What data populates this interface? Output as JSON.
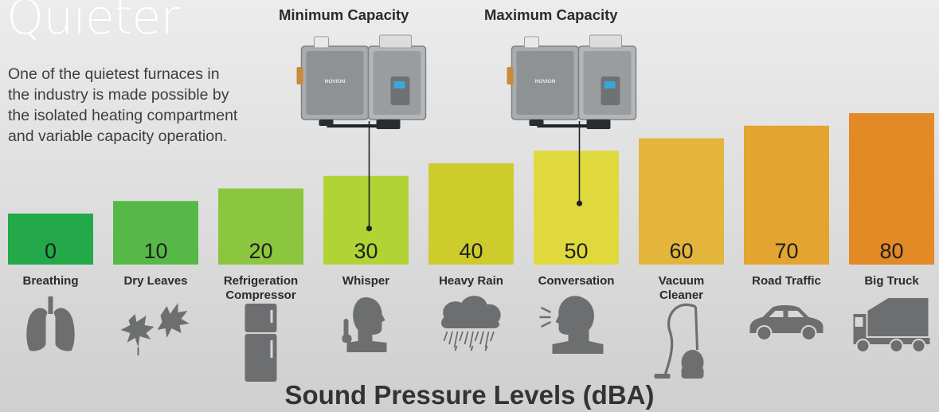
{
  "header": {
    "title": "Quieter",
    "intro": "One of the quietest furnaces in the industry is made possible by the isolated heating compartment and variable capacity operation."
  },
  "annotations": {
    "min_label": "Minimum Capacity",
    "max_label": "Maximum Capacity",
    "min_value": 30,
    "max_value": 50,
    "brand_text": "NOVION"
  },
  "chart_data": {
    "type": "bar",
    "title": "Sound Pressure Levels (dBA)",
    "categories": [
      "Breathing",
      "Dry Leaves",
      "Refrigeration Compressor",
      "Whisper",
      "Heavy Rain",
      "Conversation",
      "Vacuum Cleaner",
      "Road Traffic",
      "Big Truck"
    ],
    "category_lines": [
      [
        "Breathing"
      ],
      [
        "Dry Leaves"
      ],
      [
        "Refrigeration",
        "Compressor"
      ],
      [
        "Whisper"
      ],
      [
        "Heavy Rain"
      ],
      [
        "Conversation"
      ],
      [
        "Vacuum",
        "Cleaner"
      ],
      [
        "Road Traffic"
      ],
      [
        "Big Truck"
      ]
    ],
    "values": [
      0,
      10,
      20,
      30,
      40,
      50,
      60,
      70,
      80
    ],
    "colors": [
      "#23a84a",
      "#56b947",
      "#8cc63e",
      "#b2d335",
      "#cdcc2c",
      "#e0d93e",
      "#e3b63b",
      "#e3a430",
      "#e38926"
    ],
    "icons": [
      "lungs-icon",
      "leaves-icon",
      "refrigerator-icon",
      "whisper-icon",
      "rain-cloud-icon",
      "speaking-person-icon",
      "vacuum-icon",
      "car-icon",
      "truck-icon"
    ],
    "ylim": [
      0,
      80
    ],
    "grid": false,
    "legend": "none"
  }
}
